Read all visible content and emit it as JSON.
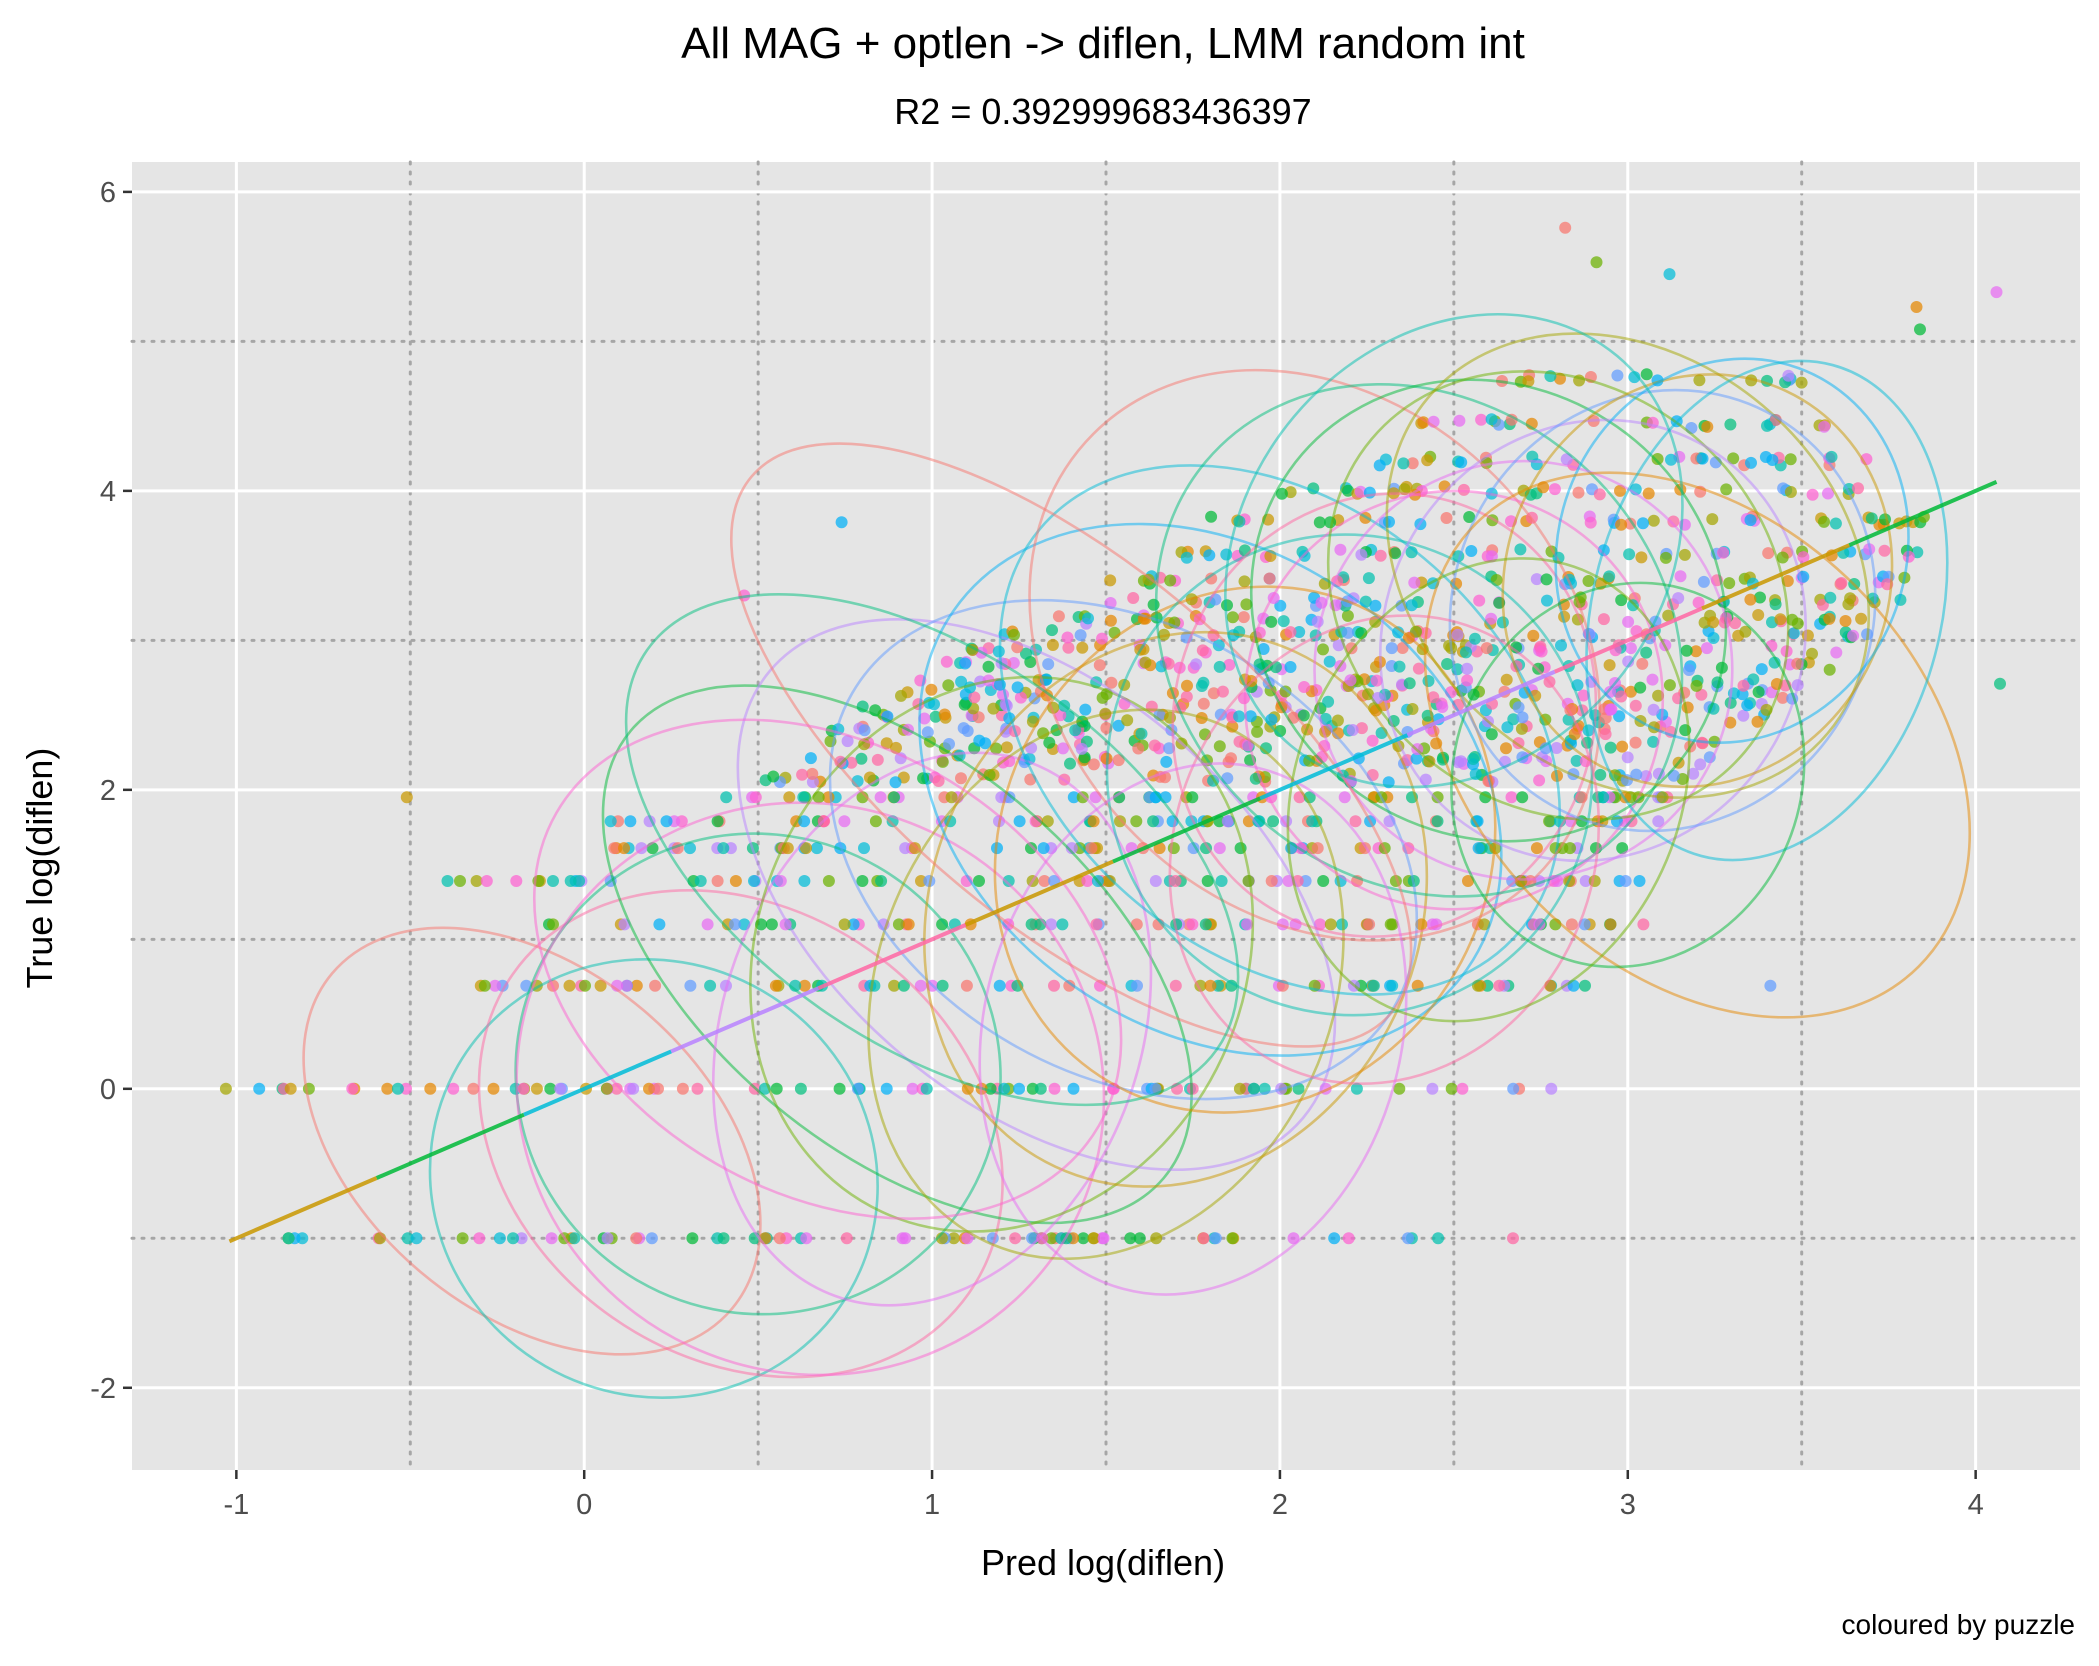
{
  "chart_data": {
    "type": "scatter",
    "title": "All MAG + optlen -> diflen, LMM random int",
    "subtitle": "R2 = 0.392999683436397",
    "xlabel": "Pred log(diflen)",
    "ylabel": "True log(diflen)",
    "caption": "coloured by puzzle",
    "xlim": [
      -1.3,
      4.3
    ],
    "ylim": [
      -2.55,
      6.2
    ],
    "x_ticks": [
      -1,
      0,
      1,
      2,
      3,
      4
    ],
    "x_tick_labels": [
      "-1",
      "0",
      "1",
      "2",
      "3",
      "4"
    ],
    "y_ticks": [
      -2,
      0,
      2,
      4,
      6
    ],
    "y_tick_labels": [
      "-2",
      "0",
      "2",
      "4",
      "6"
    ],
    "minor_x_gridlines": [
      -0.5,
      0.5,
      1.5,
      2.5,
      3.5
    ],
    "minor_y_gridlines": [
      -1,
      1,
      3,
      5
    ],
    "grid": true,
    "panel_background": "#e5e5e5",
    "major_grid_color": "#ffffff",
    "minor_grid_color": "#a6a6a6",
    "palette": [
      "#f8766d",
      "#e58700",
      "#c99800",
      "#a3a500",
      "#6bb100",
      "#00ba38",
      "#00bf7d",
      "#00c0af",
      "#00bcd8",
      "#00b0f6",
      "#619cff",
      "#b983ff",
      "#e76bf3",
      "#fd61d1",
      "#ff67a4"
    ],
    "fit_line": {
      "x": [
        -1.02,
        4.06
      ],
      "y": [
        -1.02,
        4.06
      ]
    },
    "notable_points": [
      {
        "x": 2.82,
        "y": 5.76
      },
      {
        "x": 2.91,
        "y": 5.53
      },
      {
        "x": 3.12,
        "y": 5.45
      },
      {
        "x": 4.06,
        "y": 5.33
      },
      {
        "x": 3.83,
        "y": 5.23
      },
      {
        "x": 3.84,
        "y": 5.08
      },
      {
        "x": 0.74,
        "y": 3.79
      },
      {
        "x": 0.46,
        "y": 3.3
      },
      {
        "x": -0.51,
        "y": 1.95
      },
      {
        "x": 4.07,
        "y": 2.71
      },
      {
        "x": 3.41,
        "y": 0.69
      },
      {
        "x": 2.67,
        "y": -1.0
      },
      {
        "x": -1.03,
        "y": 0.0
      },
      {
        "x": -0.85,
        "y": -1.0
      },
      {
        "x": 2.78,
        "y": 0.0
      }
    ],
    "point_groups": [
      {
        "y": -1.0,
        "x_from": -0.88,
        "x_to": 2.47
      },
      {
        "y": 0.0,
        "x_from": -1.03,
        "x_to": 2.78
      },
      {
        "y": 0.69,
        "x_from": -0.34,
        "x_to": 2.9
      },
      {
        "y": 1.1,
        "x_from": -0.12,
        "x_to": 3.08
      },
      {
        "y": 1.39,
        "x_from": -0.4,
        "x_to": 3.1
      },
      {
        "y": 1.61,
        "x_from": 0.05,
        "x_to": 3.05
      },
      {
        "y": 1.79,
        "x_from": 0.05,
        "x_to": 3.1
      },
      {
        "y": 1.95,
        "x_from": 0.4,
        "x_to": 3.2
      },
      {
        "y": 2.08,
        "x_from": 0.5,
        "x_to": 3.2
      },
      {
        "y": 2.2,
        "x_from": 0.55,
        "x_to": 3.25
      },
      {
        "y": 2.3,
        "x_from": 0.7,
        "x_to": 3.3
      },
      {
        "y": 2.4,
        "x_from": 0.7,
        "x_to": 3.3
      },
      {
        "y": 2.48,
        "x_from": 0.8,
        "x_to": 3.4
      },
      {
        "y": 2.56,
        "x_from": 0.8,
        "x_to": 3.4
      },
      {
        "y": 2.64,
        "x_from": 0.9,
        "x_to": 3.5
      },
      {
        "y": 2.71,
        "x_from": 0.9,
        "x_to": 3.5
      },
      {
        "y": 2.83,
        "x_from": 1.0,
        "x_to": 3.6
      },
      {
        "y": 2.94,
        "x_from": 1.1,
        "x_to": 3.6
      },
      {
        "y": 3.04,
        "x_from": 1.2,
        "x_to": 3.7
      },
      {
        "y": 3.14,
        "x_from": 1.3,
        "x_to": 3.7
      },
      {
        "y": 3.26,
        "x_from": 1.4,
        "x_to": 3.8
      },
      {
        "y": 3.4,
        "x_from": 1.5,
        "x_to": 3.8
      },
      {
        "y": 3.58,
        "x_from": 1.6,
        "x_to": 3.9
      },
      {
        "y": 3.8,
        "x_from": 1.8,
        "x_to": 3.9
      },
      {
        "y": 4.0,
        "x_from": 2.0,
        "x_to": 3.8
      },
      {
        "y": 4.2,
        "x_from": 2.2,
        "x_to": 3.7
      },
      {
        "y": 4.45,
        "x_from": 2.4,
        "x_to": 3.6
      },
      {
        "y": 4.75,
        "x_from": 2.6,
        "x_to": 3.5
      }
    ],
    "ellipses": [
      {
        "cx": -0.15,
        "cy": -0.35,
        "rx": 0.75,
        "ry": 1.15,
        "rot": 40
      },
      {
        "cx": 0.2,
        "cy": -0.6,
        "rx": 0.65,
        "ry": 1.45,
        "rot": 30
      },
      {
        "cx": 0.45,
        "cy": -0.3,
        "rx": 0.8,
        "ry": 1.5,
        "rot": 35
      },
      {
        "cx": 0.5,
        "cy": 0.1,
        "rx": 0.7,
        "ry": 1.6,
        "rot": 30
      },
      {
        "cx": 0.65,
        "cy": 0.0,
        "rx": 0.85,
        "ry": 1.9,
        "rot": 25
      },
      {
        "cx": 0.9,
        "cy": 0.9,
        "rx": 1.0,
        "ry": 1.3,
        "rot": 40
      },
      {
        "cx": 1.0,
        "cy": 0.4,
        "rx": 0.6,
        "ry": 1.9,
        "rot": 20
      },
      {
        "cx": 1.2,
        "cy": 0.9,
        "rx": 0.7,
        "ry": 1.9,
        "rot": 25
      },
      {
        "cx": 1.3,
        "cy": 1.3,
        "rx": 1.0,
        "ry": 1.4,
        "rot": 40
      },
      {
        "cx": 1.5,
        "cy": 0.7,
        "rx": 0.65,
        "ry": 1.9,
        "rot": 25
      },
      {
        "cx": 1.55,
        "cy": 1.6,
        "rx": 0.9,
        "ry": 1.5,
        "rot": 30
      },
      {
        "cx": 1.7,
        "cy": 1.2,
        "rx": 0.7,
        "ry": 1.9,
        "rot": 25
      },
      {
        "cx": 1.8,
        "cy": 2.0,
        "rx": 0.9,
        "ry": 1.6,
        "rot": 35
      },
      {
        "cx": 1.9,
        "cy": 1.6,
        "rx": 0.7,
        "ry": 1.8,
        "rot": 30
      },
      {
        "cx": 2.0,
        "cy": 2.4,
        "rx": 0.9,
        "ry": 1.5,
        "rot": 40
      },
      {
        "cx": 2.1,
        "cy": 2.9,
        "rx": 0.9,
        "ry": 1.7,
        "rot": 45
      },
      {
        "cx": 2.2,
        "cy": 2.1,
        "rx": 0.7,
        "ry": 1.6,
        "rot": 30
      },
      {
        "cx": 2.3,
        "cy": 2.5,
        "rx": 0.6,
        "ry": 1.5,
        "rot": 25
      },
      {
        "cx": 2.4,
        "cy": 3.0,
        "rx": 0.8,
        "ry": 1.6,
        "rot": 40
      },
      {
        "cx": 2.5,
        "cy": 2.6,
        "rx": 0.6,
        "ry": 1.4,
        "rot": 30
      },
      {
        "cx": 2.6,
        "cy": 3.2,
        "rx": 0.7,
        "ry": 1.5,
        "rot": 35
      },
      {
        "cx": 2.7,
        "cy": 2.8,
        "rx": 0.6,
        "ry": 1.4,
        "rot": 30
      },
      {
        "cx": 2.8,
        "cy": 3.3,
        "rx": 0.7,
        "ry": 1.4,
        "rot": 40
      },
      {
        "cx": 2.9,
        "cy": 3.0,
        "rx": 0.6,
        "ry": 1.5,
        "rot": 30
      },
      {
        "cx": 3.0,
        "cy": 3.5,
        "rx": 0.75,
        "ry": 1.4,
        "rot": 40
      },
      {
        "cx": 3.1,
        "cy": 3.2,
        "rx": 0.6,
        "ry": 1.5,
        "rot": 30
      },
      {
        "cx": 3.2,
        "cy": 3.4,
        "rx": 0.55,
        "ry": 1.4,
        "rot": 25
      },
      {
        "cx": 3.3,
        "cy": 3.6,
        "rx": 0.5,
        "ry": 1.3,
        "rot": 20
      },
      {
        "cx": 3.2,
        "cy": 2.3,
        "rx": 0.9,
        "ry": 1.5,
        "rot": 45
      },
      {
        "cx": 3.4,
        "cy": 3.2,
        "rx": 0.5,
        "ry": 1.7,
        "rot": 15
      },
      {
        "cx": 1.4,
        "cy": 2.3,
        "rx": 1.2,
        "ry": 1.2,
        "rot": 40
      },
      {
        "cx": 2.5,
        "cy": 3.6,
        "rx": 0.6,
        "ry": 1.7,
        "rot": 40
      },
      {
        "cx": 2.3,
        "cy": 1.6,
        "rx": 0.6,
        "ry": 1.6,
        "rot": 25
      },
      {
        "cx": 1.0,
        "cy": 1.6,
        "rx": 1.0,
        "ry": 1.3,
        "rot": 35
      },
      {
        "cx": 0.7,
        "cy": 0.8,
        "rx": 0.9,
        "ry": 1.5,
        "rot": 30
      },
      {
        "cx": 3.0,
        "cy": 2.1,
        "rx": 0.5,
        "ry": 1.3,
        "rot": 20
      },
      {
        "cx": 1.75,
        "cy": 0.4,
        "rx": 0.6,
        "ry": 1.8,
        "rot": 15
      },
      {
        "cx": 2.6,
        "cy": 2.0,
        "rx": 0.55,
        "ry": 1.6,
        "rot": 25
      }
    ]
  }
}
